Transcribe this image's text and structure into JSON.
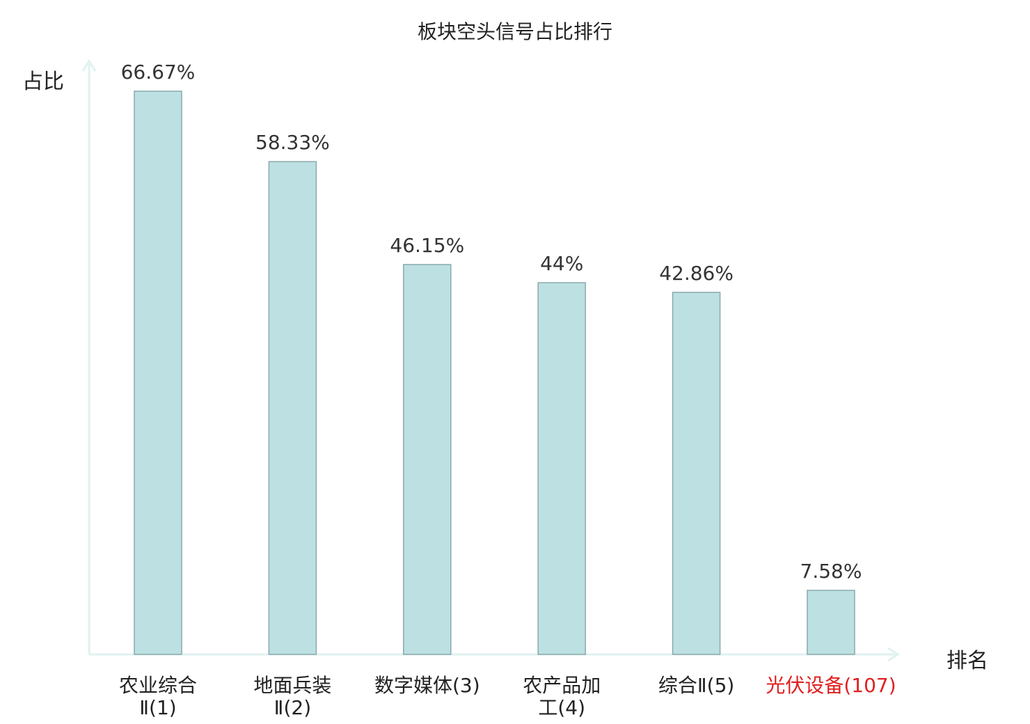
{
  "chart_data": {
    "type": "bar",
    "title": "板块空头信号占比排行",
    "ylabel": "占比",
    "xlabel": "排名",
    "categories": [
      {
        "name": "农业综合",
        "suffix": "Ⅱ",
        "rank": "(1)"
      },
      {
        "name": "地面兵装",
        "suffix": "Ⅱ",
        "rank": "(2)"
      },
      {
        "name": "数字媒体",
        "suffix": "",
        "rank": "(3)"
      },
      {
        "name": "农产品加工",
        "suffix": "",
        "rank": "(4)"
      },
      {
        "name": "综合",
        "suffix": "Ⅱ",
        "rank": "(5)"
      },
      {
        "name": "光伏设备",
        "suffix": "",
        "rank": "(107)"
      }
    ],
    "tick_lines": [
      [
        "农业综合",
        "Ⅱ(1)"
      ],
      [
        "地面兵装",
        "Ⅱ(2)"
      ],
      [
        "数字媒体(3)"
      ],
      [
        "农产品加",
        "工(4)"
      ],
      [
        "综合Ⅱ(5)"
      ],
      [
        "光伏设备(107)"
      ]
    ],
    "values": [
      66.67,
      58.33,
      46.15,
      44,
      42.86,
      7.58
    ],
    "value_labels": [
      "66.67%",
      "58.33%",
      "46.15%",
      "44%",
      "42.86%",
      "7.58%"
    ],
    "ylim": [
      0,
      66.67
    ],
    "grid": false,
    "highlight_index": 5,
    "colors": {
      "bar_fill": "#bde0e3",
      "bar_stroke": "#8aa9ab",
      "axis": "#dff2ef",
      "text": "#222222",
      "highlight_text": "#e02020",
      "label_text": "#333333"
    }
  }
}
